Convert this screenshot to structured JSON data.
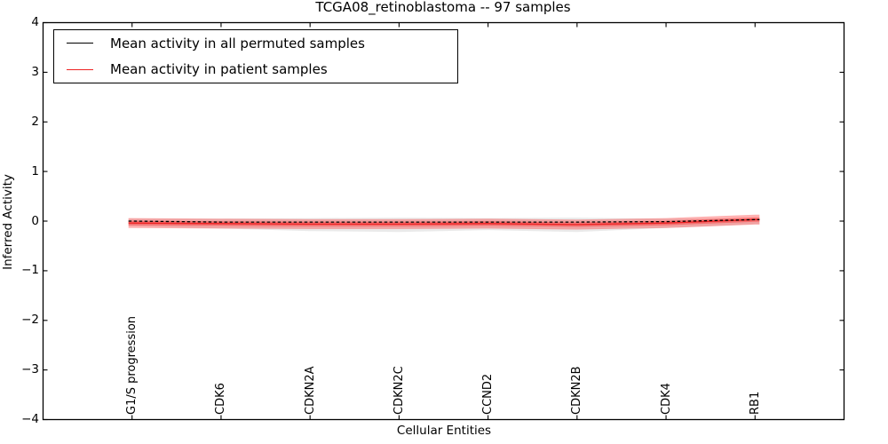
{
  "chart_data": {
    "type": "line",
    "title": "TCGA08_retinoblastoma -- 97 samples",
    "xlabel": "Cellular Entities",
    "ylabel": "Inferred Activity",
    "xlim": [
      -1,
      8
    ],
    "ylim": [
      -4,
      4
    ],
    "yticks": [
      4,
      3,
      2,
      1,
      0,
      -1,
      -2,
      -3,
      -4
    ],
    "grid": false,
    "legend_position": "upper left",
    "categories": [
      "G1/S progression",
      "CDK6",
      "CDKN2A",
      "CDKN2C",
      "CCND2",
      "CDKN2B",
      "CDK4",
      "RB1"
    ],
    "x_positions": [
      0,
      1,
      2,
      3,
      4,
      5,
      6,
      7
    ],
    "axis_color": "#000000",
    "series": [
      {
        "name": "Mean activity in all permuted samples",
        "color": "#000000",
        "line_style": "dashed",
        "values": [
          0.0,
          -0.02,
          -0.02,
          -0.02,
          -0.02,
          -0.02,
          -0.01,
          0.03
        ],
        "band_upper": [
          0.05,
          0.05,
          0.06,
          0.07,
          0.06,
          0.07,
          0.05,
          0.05
        ],
        "band_lower": [
          -0.1,
          -0.15,
          -0.2,
          -0.22,
          -0.18,
          -0.22,
          -0.14,
          -0.06
        ],
        "band_color": "#888888",
        "band_opacity": 0.18
      },
      {
        "name": "Mean activity in patient samples",
        "color": "#ee2222",
        "line_style": "solid",
        "values": [
          -0.04,
          -0.05,
          -0.06,
          -0.06,
          -0.05,
          -0.07,
          -0.04,
          0.03
        ],
        "band_half_width_outer": 0.1,
        "band_half_width_inner": 0.045,
        "band_color": "#ff0000",
        "band_opacity": 0.3
      }
    ]
  }
}
